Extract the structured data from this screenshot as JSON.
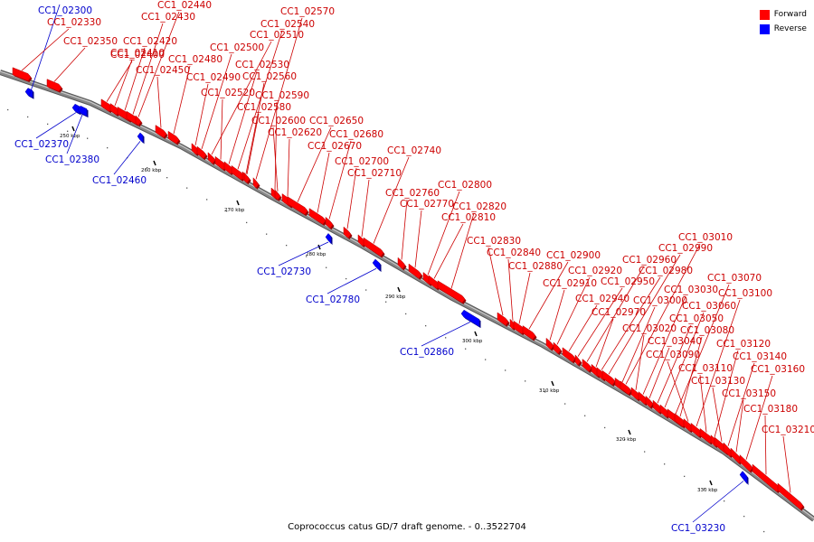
{
  "caption": "Coprococcus catus GD/7 draft genome. - 0..3522704",
  "legend": [
    {
      "label": "Forward",
      "color": "#ff0000"
    },
    {
      "label": "Reverse",
      "color": "#0000ff"
    }
  ],
  "colors": {
    "forward": "#ff0000",
    "reverse": "#0000ff",
    "backbone": "#888888",
    "forward_label": "#cc0000",
    "reverse_label": "#0000cc"
  },
  "ticks": [
    "250 kbp",
    "260 kbp",
    "270 kbp",
    "280 kbp",
    "290 kbp",
    "300 kbp",
    "310 kbp",
    "320 kbp",
    "330 kbp"
  ],
  "genes": [
    {
      "id": "CC1_02300",
      "strand": "reverse"
    },
    {
      "id": "CC1_02330",
      "strand": "forward"
    },
    {
      "id": "CC1_02350",
      "strand": "forward"
    },
    {
      "id": "CC1_02370",
      "strand": "reverse"
    },
    {
      "id": "CC1_02380",
      "strand": "reverse"
    },
    {
      "id": "CC1_02400",
      "strand": "forward"
    },
    {
      "id": "CC1_02410",
      "strand": "forward"
    },
    {
      "id": "CC1_02420",
      "strand": "forward"
    },
    {
      "id": "CC1_02430",
      "strand": "forward"
    },
    {
      "id": "CC1_02440",
      "strand": "forward"
    },
    {
      "id": "CC1_02450",
      "strand": "forward"
    },
    {
      "id": "CC1_02460",
      "strand": "reverse"
    },
    {
      "id": "CC1_02480",
      "strand": "forward"
    },
    {
      "id": "CC1_02490",
      "strand": "forward"
    },
    {
      "id": "CC1_02500",
      "strand": "forward"
    },
    {
      "id": "CC1_02510",
      "strand": "forward"
    },
    {
      "id": "CC1_02520",
      "strand": "forward"
    },
    {
      "id": "CC1_02530",
      "strand": "forward"
    },
    {
      "id": "CC1_02540",
      "strand": "forward"
    },
    {
      "id": "CC1_02560",
      "strand": "forward"
    },
    {
      "id": "CC1_02570",
      "strand": "forward"
    },
    {
      "id": "CC1_02580",
      "strand": "forward"
    },
    {
      "id": "CC1_02590",
      "strand": "forward"
    },
    {
      "id": "CC1_02600",
      "strand": "forward"
    },
    {
      "id": "CC1_02620",
      "strand": "forward"
    },
    {
      "id": "CC1_02650",
      "strand": "forward"
    },
    {
      "id": "CC1_02670",
      "strand": "forward"
    },
    {
      "id": "CC1_02680",
      "strand": "forward"
    },
    {
      "id": "CC1_02700",
      "strand": "forward"
    },
    {
      "id": "CC1_02710",
      "strand": "forward"
    },
    {
      "id": "CC1_02730",
      "strand": "reverse"
    },
    {
      "id": "CC1_02740",
      "strand": "forward"
    },
    {
      "id": "CC1_02760",
      "strand": "forward"
    },
    {
      "id": "CC1_02770",
      "strand": "forward"
    },
    {
      "id": "CC1_02780",
      "strand": "reverse"
    },
    {
      "id": "CC1_02800",
      "strand": "forward"
    },
    {
      "id": "CC1_02810",
      "strand": "forward"
    },
    {
      "id": "CC1_02820",
      "strand": "forward"
    },
    {
      "id": "CC1_02830",
      "strand": "forward"
    },
    {
      "id": "CC1_02840",
      "strand": "forward"
    },
    {
      "id": "CC1_02860",
      "strand": "reverse"
    },
    {
      "id": "CC1_02880",
      "strand": "forward"
    },
    {
      "id": "CC1_02900",
      "strand": "forward"
    },
    {
      "id": "CC1_02910",
      "strand": "forward"
    },
    {
      "id": "CC1_02920",
      "strand": "forward"
    },
    {
      "id": "CC1_02940",
      "strand": "forward"
    },
    {
      "id": "CC1_02950",
      "strand": "forward"
    },
    {
      "id": "CC1_02960",
      "strand": "forward"
    },
    {
      "id": "CC1_02970",
      "strand": "forward"
    },
    {
      "id": "CC1_02980",
      "strand": "forward"
    },
    {
      "id": "CC1_02990",
      "strand": "forward"
    },
    {
      "id": "CC1_03000",
      "strand": "forward"
    },
    {
      "id": "CC1_03010",
      "strand": "forward"
    },
    {
      "id": "CC1_03020",
      "strand": "forward"
    },
    {
      "id": "CC1_03030",
      "strand": "forward"
    },
    {
      "id": "CC1_03040",
      "strand": "forward"
    },
    {
      "id": "CC1_03050",
      "strand": "forward"
    },
    {
      "id": "CC1_03060",
      "strand": "forward"
    },
    {
      "id": "CC1_03070",
      "strand": "forward"
    },
    {
      "id": "CC1_03080",
      "strand": "forward"
    },
    {
      "id": "CC1_03090",
      "strand": "forward"
    },
    {
      "id": "CC1_03100",
      "strand": "forward"
    },
    {
      "id": "CC1_03110",
      "strand": "forward"
    },
    {
      "id": "CC1_03120",
      "strand": "forward"
    },
    {
      "id": "CC1_03130",
      "strand": "forward"
    },
    {
      "id": "CC1_03140",
      "strand": "forward"
    },
    {
      "id": "CC1_03150",
      "strand": "forward"
    },
    {
      "id": "CC1_03160",
      "strand": "forward"
    },
    {
      "id": "CC1_03180",
      "strand": "forward"
    },
    {
      "id": "CC1_03210",
      "strand": "forward"
    },
    {
      "id": "CC1_03230",
      "strand": "reverse"
    }
  ]
}
